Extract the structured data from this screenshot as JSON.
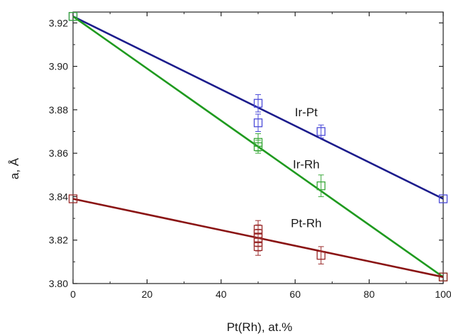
{
  "chart_data": {
    "type": "scatter",
    "xlabel": "Pt(Rh), at.%",
    "ylabel": "a, Å",
    "xlim": [
      0,
      100
    ],
    "ylim": [
      3.8,
      3.925
    ],
    "xticks": [
      0,
      20,
      40,
      60,
      80,
      100
    ],
    "yticks": [
      3.8,
      3.82,
      3.84,
      3.86,
      3.88,
      3.9,
      3.92
    ],
    "xtick_labels": [
      "0",
      "20",
      "40",
      "60",
      "80",
      "100"
    ],
    "ytick_labels": [
      "3.80",
      "3.82",
      "3.84",
      "3.86",
      "3.88",
      "3.90",
      "3.92"
    ],
    "grid": false,
    "legend": "none",
    "series": [
      {
        "name": "Ir-Pt",
        "marker_color": "#4a4ad8",
        "line_color": "#1c1c8c",
        "line": [
          [
            0,
            3.923
          ],
          [
            100,
            3.839
          ]
        ],
        "points": [
          {
            "x": 0,
            "y": 3.923,
            "err": 0
          },
          {
            "x": 50,
            "y": 3.883,
            "err": 0.004
          },
          {
            "x": 50,
            "y": 3.874,
            "err": 0.004
          },
          {
            "x": 67,
            "y": 3.87,
            "err": 0.003
          },
          {
            "x": 100,
            "y": 3.839,
            "err": 0
          }
        ]
      },
      {
        "name": "Ir-Rh",
        "marker_color": "#3aa83a",
        "line_color": "#1f9a1f",
        "line": [
          [
            0,
            3.923
          ],
          [
            100,
            3.803
          ]
        ],
        "points": [
          {
            "x": 0,
            "y": 3.923,
            "err": 0
          },
          {
            "x": 50,
            "y": 3.865,
            "err": 0.004
          },
          {
            "x": 50,
            "y": 3.863,
            "err": 0.003
          },
          {
            "x": 67,
            "y": 3.845,
            "err": 0.005
          },
          {
            "x": 100,
            "y": 3.803,
            "err": 0
          }
        ]
      },
      {
        "name": "Pt-Rh",
        "marker_color": "#9a2a2a",
        "line_color": "#8a1414",
        "line": [
          [
            0,
            3.839
          ],
          [
            100,
            3.803
          ]
        ],
        "points": [
          {
            "x": 0,
            "y": 3.839,
            "err": 0
          },
          {
            "x": 50,
            "y": 3.825,
            "err": 0.004
          },
          {
            "x": 50,
            "y": 3.823,
            "err": 0.004
          },
          {
            "x": 50,
            "y": 3.821,
            "err": 0.004
          },
          {
            "x": 50,
            "y": 3.819,
            "err": 0.004
          },
          {
            "x": 50,
            "y": 3.817,
            "err": 0.004
          },
          {
            "x": 67,
            "y": 3.813,
            "err": 0.004
          },
          {
            "x": 100,
            "y": 3.803,
            "err": 0
          }
        ]
      }
    ],
    "annotations": [
      {
        "text": "Ir-Pt",
        "x": 63,
        "y": 3.877
      },
      {
        "text": "Ir-Rh",
        "x": 63,
        "y": 3.853
      },
      {
        "text": "Pt-Rh",
        "x": 63,
        "y": 3.826
      }
    ]
  }
}
